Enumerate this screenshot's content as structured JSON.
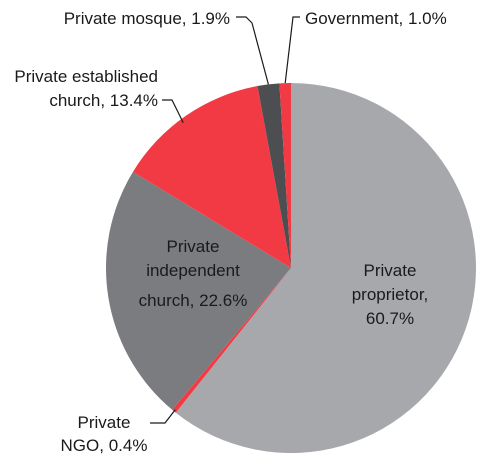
{
  "chart_data": {
    "type": "pie",
    "title": "",
    "start": "12 o'clock",
    "direction": "clockwise",
    "slices": [
      {
        "label": "Private proprietor",
        "value": 60.7,
        "color": "#a7a8ab",
        "text": [
          "Private",
          "proprietor,",
          "60.7%"
        ]
      },
      {
        "label": "Private NGO",
        "value": 0.4,
        "color": "#f23a44",
        "text": [
          "Private",
          "NGO, 0.4%"
        ]
      },
      {
        "label": "Private independent church",
        "value": 22.6,
        "color": "#7b7c80",
        "text": [
          "Private",
          "independent",
          "church, 22.6%"
        ]
      },
      {
        "label": "Private established church",
        "value": 13.4,
        "color": "#f23a44",
        "text": [
          "Private established",
          "church, 13.4%"
        ]
      },
      {
        "label": "Private mosque",
        "value": 1.9,
        "color": "#4d4e52",
        "text": [
          "Private mosque, 1.9%"
        ]
      },
      {
        "label": "Government",
        "value": 1.0,
        "color": "#f23a44",
        "text": [
          "Government, 1.0%"
        ]
      }
    ]
  }
}
